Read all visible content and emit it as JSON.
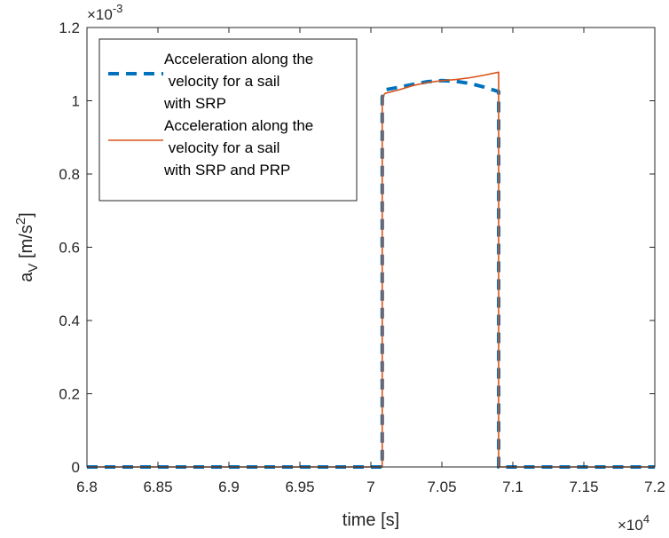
{
  "chart_data": {
    "type": "line",
    "title": "",
    "xlabel": "time [s]",
    "ylabel": "a_V [m/s^2]",
    "x_exponent_label": "×10",
    "x_exponent_power": "4",
    "y_exponent_label": "×10",
    "y_exponent_power": "-3",
    "x_scale": 10000,
    "y_scale": 0.001,
    "xlim": [
      68000,
      72000
    ],
    "ylim": [
      0,
      0.0012
    ],
    "xticks": [
      68000,
      68500,
      69000,
      69500,
      70000,
      70500,
      71000,
      71500,
      72000
    ],
    "xtick_labels": [
      "6.8",
      "6.85",
      "6.9",
      "6.95",
      "7",
      "7.05",
      "7.1",
      "7.15",
      "7.2"
    ],
    "yticks": [
      0,
      0.0002,
      0.0004,
      0.0006,
      0.0008,
      0.001,
      0.0012
    ],
    "ytick_labels": [
      "0",
      "0.2",
      "0.4",
      "0.6",
      "0.8",
      "1",
      "1.2"
    ],
    "grid": false,
    "legend_position": "top-left",
    "series": [
      {
        "name": "Acceleration along the velocity for a sail with SRP",
        "legend_lines": [
          "Acceleration along the",
          " velocity for a sail",
          "with SRP"
        ],
        "color": "#0072BD",
        "style": "dashed",
        "x": [
          68000,
          70080,
          70080,
          70100,
          70200,
          70300,
          70400,
          70500,
          70600,
          70700,
          70800,
          70900,
          70900,
          72000
        ],
        "y": [
          0,
          0,
          0.00101,
          0.00103,
          0.001037,
          0.001045,
          0.001052,
          0.001055,
          0.001053,
          0.001047,
          0.001037,
          0.001025,
          0,
          0
        ]
      },
      {
        "name": "Acceleration along the velocity for a sail with SRP and PRP",
        "legend_lines": [
          "Acceleration along the",
          " velocity for a sail",
          "with SRP and PRP"
        ],
        "color": "#D95319",
        "style": "solid",
        "x": [
          68000,
          70080,
          70080,
          70100,
          70200,
          70300,
          70400,
          70500,
          70600,
          70700,
          70800,
          70900,
          70900,
          72000
        ],
        "y": [
          0,
          0,
          0.00101,
          0.00102,
          0.00103,
          0.001042,
          0.00105,
          0.001055,
          0.001058,
          0.001063,
          0.00107,
          0.001078,
          0,
          0
        ]
      }
    ]
  }
}
